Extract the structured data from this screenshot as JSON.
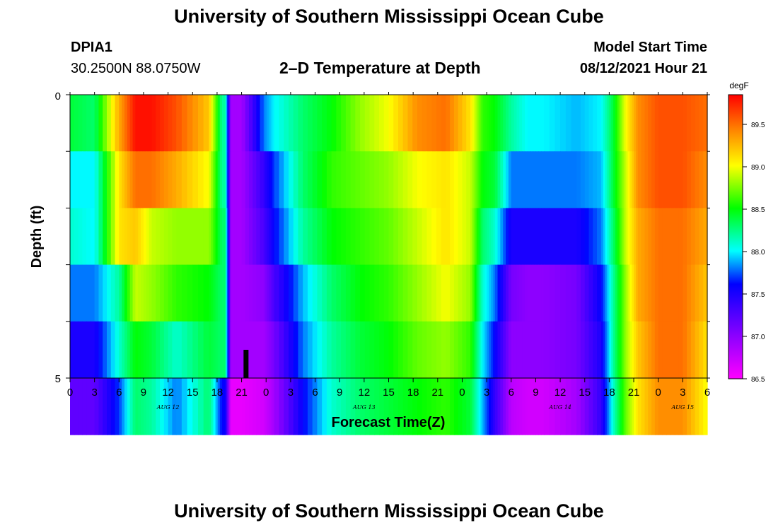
{
  "page": {
    "title_top": "University of Southern Mississippi Ocean Cube",
    "title_bottom": "University of Southern Mississippi Ocean Cube",
    "station_id": "DPIA1",
    "station_coords": "30.2500N  88.0750W",
    "chart_title": "2–D Temperature at Depth",
    "model_start_label": "Model Start Time",
    "model_start_value": "08/12/2021 Hour 21"
  },
  "chart_data": {
    "type": "heatmap",
    "title": "2–D Temperature at Depth",
    "xlabel": "Forecast Time(Z)",
    "ylabel": "Depth (ft)",
    "x_tick_labels": [
      "0",
      "3",
      "6",
      "9",
      "12",
      "15",
      "18",
      "21",
      "0",
      "3",
      "6",
      "9",
      "12",
      "15",
      "18",
      "21",
      "0",
      "3",
      "6",
      "9",
      "12",
      "15",
      "18",
      "21",
      "0",
      "3",
      "6"
    ],
    "y_range": [
      0,
      5
    ],
    "y_tick_labels": [
      "0",
      "5"
    ],
    "date_labels": [
      {
        "label": "AUG 12",
        "hour": 12
      },
      {
        "label": "AUG 13",
        "hour": 36
      },
      {
        "label": "AUG 14",
        "hour": 60
      },
      {
        "label": "AUG 15",
        "hour": 75
      }
    ],
    "colorbar": {
      "unit": "degF",
      "min": 86.5,
      "max": 89.85,
      "ticks": [
        "86.5",
        "87.0",
        "87.5",
        "88.0",
        "88.5",
        "89.0",
        "89.5"
      ]
    },
    "current_time_marker_hour": 21.5,
    "time_hours": [
      0,
      3,
      6,
      8,
      10,
      13,
      17,
      18.6,
      19,
      19.7,
      21,
      23.7,
      25,
      28.5,
      32,
      35.5,
      39,
      42.5,
      46,
      49,
      50.5,
      52,
      54,
      56,
      58,
      62,
      65,
      66.5,
      68,
      69.5,
      72,
      75,
      78
    ],
    "depth_layers_ft": [
      0,
      1,
      2,
      3,
      4,
      5
    ],
    "temperature_degF": [
      [
        88.4,
        88.3,
        89.3,
        89.8,
        89.8,
        89.6,
        89.2,
        88.2,
        88.2,
        86.9,
        86.9,
        87.8,
        88.0,
        88.3,
        88.5,
        88.8,
        89.0,
        89.4,
        89.5,
        89.1,
        88.6,
        88.5,
        88.2,
        88.0,
        88.0,
        87.9,
        88.0,
        88.4,
        89.0,
        89.4,
        89.6,
        89.6,
        89.5
      ],
      [
        88.0,
        88.0,
        89.1,
        89.5,
        89.5,
        89.3,
        89.0,
        88.2,
        88.2,
        86.9,
        86.9,
        87.4,
        87.7,
        88.3,
        88.6,
        88.7,
        88.8,
        89.0,
        89.1,
        88.9,
        88.5,
        88.4,
        87.8,
        87.8,
        87.8,
        87.8,
        87.9,
        88.4,
        88.9,
        89.4,
        89.6,
        89.6,
        89.4
      ],
      [
        88.1,
        88.0,
        89.1,
        89.2,
        88.9,
        88.8,
        88.8,
        88.3,
        88.3,
        86.9,
        86.9,
        87.3,
        87.6,
        88.2,
        88.5,
        88.6,
        88.7,
        88.9,
        89.1,
        88.9,
        88.3,
        88.1,
        87.5,
        87.5,
        87.5,
        87.5,
        87.8,
        88.3,
        88.9,
        89.3,
        89.5,
        89.5,
        89.3
      ],
      [
        87.8,
        87.8,
        88.2,
        88.9,
        88.8,
        88.6,
        88.5,
        88.3,
        88.3,
        86.9,
        86.9,
        87.0,
        87.3,
        87.9,
        88.3,
        88.5,
        88.6,
        88.8,
        89.0,
        88.8,
        88.1,
        87.8,
        87.1,
        87.0,
        87.0,
        87.1,
        87.6,
        88.2,
        88.8,
        89.3,
        89.5,
        89.5,
        89.2
      ],
      [
        87.5,
        87.5,
        88.1,
        88.5,
        88.4,
        88.1,
        88.4,
        88.3,
        88.3,
        86.9,
        86.9,
        86.9,
        87.1,
        87.8,
        88.2,
        88.4,
        88.5,
        88.7,
        88.8,
        88.6,
        88.0,
        87.6,
        87.0,
        87.0,
        87.0,
        87.1,
        87.5,
        88.2,
        88.8,
        89.2,
        89.5,
        89.5,
        89.1
      ],
      [
        87.2,
        87.2,
        87.7,
        88.3,
        88.2,
        87.8,
        88.3,
        87.6,
        87.6,
        86.6,
        86.6,
        86.7,
        86.9,
        87.6,
        88.1,
        88.3,
        88.4,
        88.5,
        88.6,
        88.4,
        87.9,
        87.4,
        86.8,
        86.7,
        86.7,
        86.9,
        87.4,
        88.1,
        88.7,
        89.1,
        89.4,
        89.4,
        89.0
      ]
    ]
  }
}
